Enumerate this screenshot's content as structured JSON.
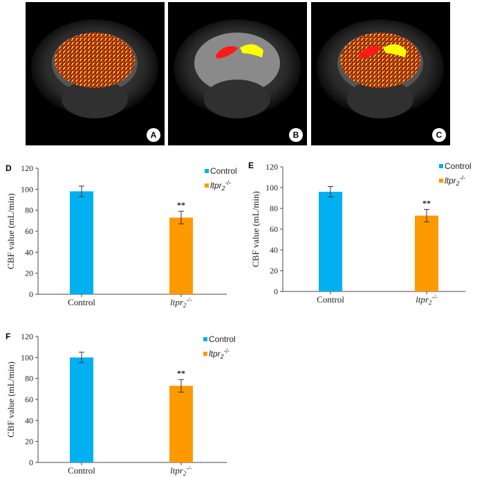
{
  "images": [
    {
      "label": "A",
      "mode": "perfusion"
    },
    {
      "label": "B",
      "mode": "regions"
    },
    {
      "label": "C",
      "mode": "both"
    }
  ],
  "colors": {
    "control": "#00b0f0",
    "ltpr": "#ff9900",
    "roi_red": "#ff1a1a",
    "roi_yellow": "#ffff00"
  },
  "chart_data": [
    {
      "panel": "D",
      "type": "bar",
      "categories": [
        "Control",
        "ltpr2-/-"
      ],
      "values": [
        98,
        73
      ],
      "errors": [
        5,
        6
      ],
      "significance": [
        "",
        "**"
      ],
      "ylabel": "CBF value (mL/min)",
      "ylim": [
        0,
        120
      ],
      "yticks": [
        0,
        20,
        40,
        60,
        80,
        100,
        120
      ],
      "legend": [
        "Control",
        "ltpr2-/-"
      ],
      "legend_position": "top-right",
      "grid": false
    },
    {
      "panel": "E",
      "type": "bar",
      "categories": [
        "Control",
        "ltpr2-/-"
      ],
      "values": [
        96,
        73
      ],
      "errors": [
        5,
        6
      ],
      "significance": [
        "",
        "**"
      ],
      "ylabel": "CBF value (mL/min)",
      "ylim": [
        0,
        120
      ],
      "yticks": [
        0,
        20,
        40,
        60,
        80,
        100,
        120
      ],
      "legend": [
        "Control",
        "ltpr2-/-"
      ],
      "legend_position": "top-right",
      "grid": false
    },
    {
      "panel": "F",
      "type": "bar",
      "categories": [
        "Control",
        "ltpr2-/-"
      ],
      "values": [
        100,
        73
      ],
      "errors": [
        5,
        6
      ],
      "significance": [
        "",
        "**"
      ],
      "ylabel": "CBF value (mL/min)",
      "ylim": [
        0,
        120
      ],
      "yticks": [
        0,
        20,
        40,
        60,
        80,
        100,
        120
      ],
      "legend": [
        "Control",
        "ltpr2-/-"
      ],
      "legend_position": "top-right",
      "grid": false
    }
  ]
}
